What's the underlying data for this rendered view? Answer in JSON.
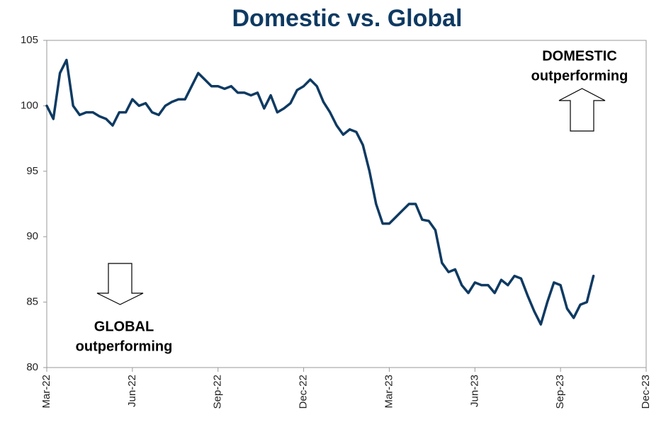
{
  "chart_data": {
    "type": "line",
    "title": "Domestic vs. Global",
    "annotations": [
      [
        "DOMESTIC",
        "outperforming"
      ],
      [
        "GLOBAL",
        "outperforming"
      ]
    ],
    "categories": [
      "Mar-22",
      null,
      null,
      null,
      null,
      null,
      null,
      null,
      null,
      null,
      null,
      null,
      null,
      "Jun-22",
      null,
      null,
      null,
      null,
      null,
      null,
      null,
      null,
      null,
      null,
      null,
      null,
      "Sep-22",
      null,
      null,
      null,
      null,
      null,
      null,
      null,
      null,
      null,
      null,
      null,
      null,
      "Dec-22",
      null,
      null,
      null,
      null,
      null,
      null,
      null,
      null,
      null,
      null,
      null,
      null,
      "Mar-23",
      null,
      null,
      null,
      null,
      null,
      null,
      null,
      null,
      null,
      null,
      null,
      null,
      "Jun-23",
      null,
      null,
      null,
      null,
      null,
      null,
      null,
      null,
      null,
      null,
      null,
      null,
      "Sep-23",
      null,
      null,
      null,
      null,
      null,
      null,
      null,
      null,
      null,
      null,
      null,
      null,
      "Dec-23"
    ],
    "series": [
      {
        "color": "#0e3a62",
        "values": [
          100,
          99,
          102.5,
          103.5,
          100,
          99.3,
          99.5,
          99.5,
          99.2,
          99,
          98.5,
          99.5,
          99.5,
          100.5,
          100,
          100.2,
          99.5,
          99.3,
          100,
          100.3,
          100.5,
          100.5,
          101.5,
          102.5,
          102,
          101.5,
          101.5,
          101.3,
          101.5,
          101,
          101,
          100.8,
          101,
          99.8,
          100.8,
          99.5,
          99.8,
          100.2,
          101.2,
          101.5,
          102,
          101.5,
          100.3,
          99.5,
          98.5,
          97.8,
          98.2,
          98,
          97,
          95,
          92.5,
          91,
          91,
          91.5,
          92,
          92.5,
          92.5,
          91.3,
          91.2,
          90.5,
          88,
          87.3,
          87.5,
          86.3,
          85.7,
          86.5,
          86.3,
          86.3,
          85.7,
          86.7,
          86.3,
          87,
          86.8,
          85.5,
          84.3,
          83.3,
          85,
          86.5,
          86.3,
          84.5,
          83.8,
          84.8,
          85,
          87,
          null,
          null,
          null,
          null,
          null,
          null,
          null,
          null
        ]
      }
    ],
    "ylim": [
      80,
      105
    ],
    "yticks": [
      80,
      85,
      90,
      95,
      100,
      105
    ],
    "grid": false
  }
}
